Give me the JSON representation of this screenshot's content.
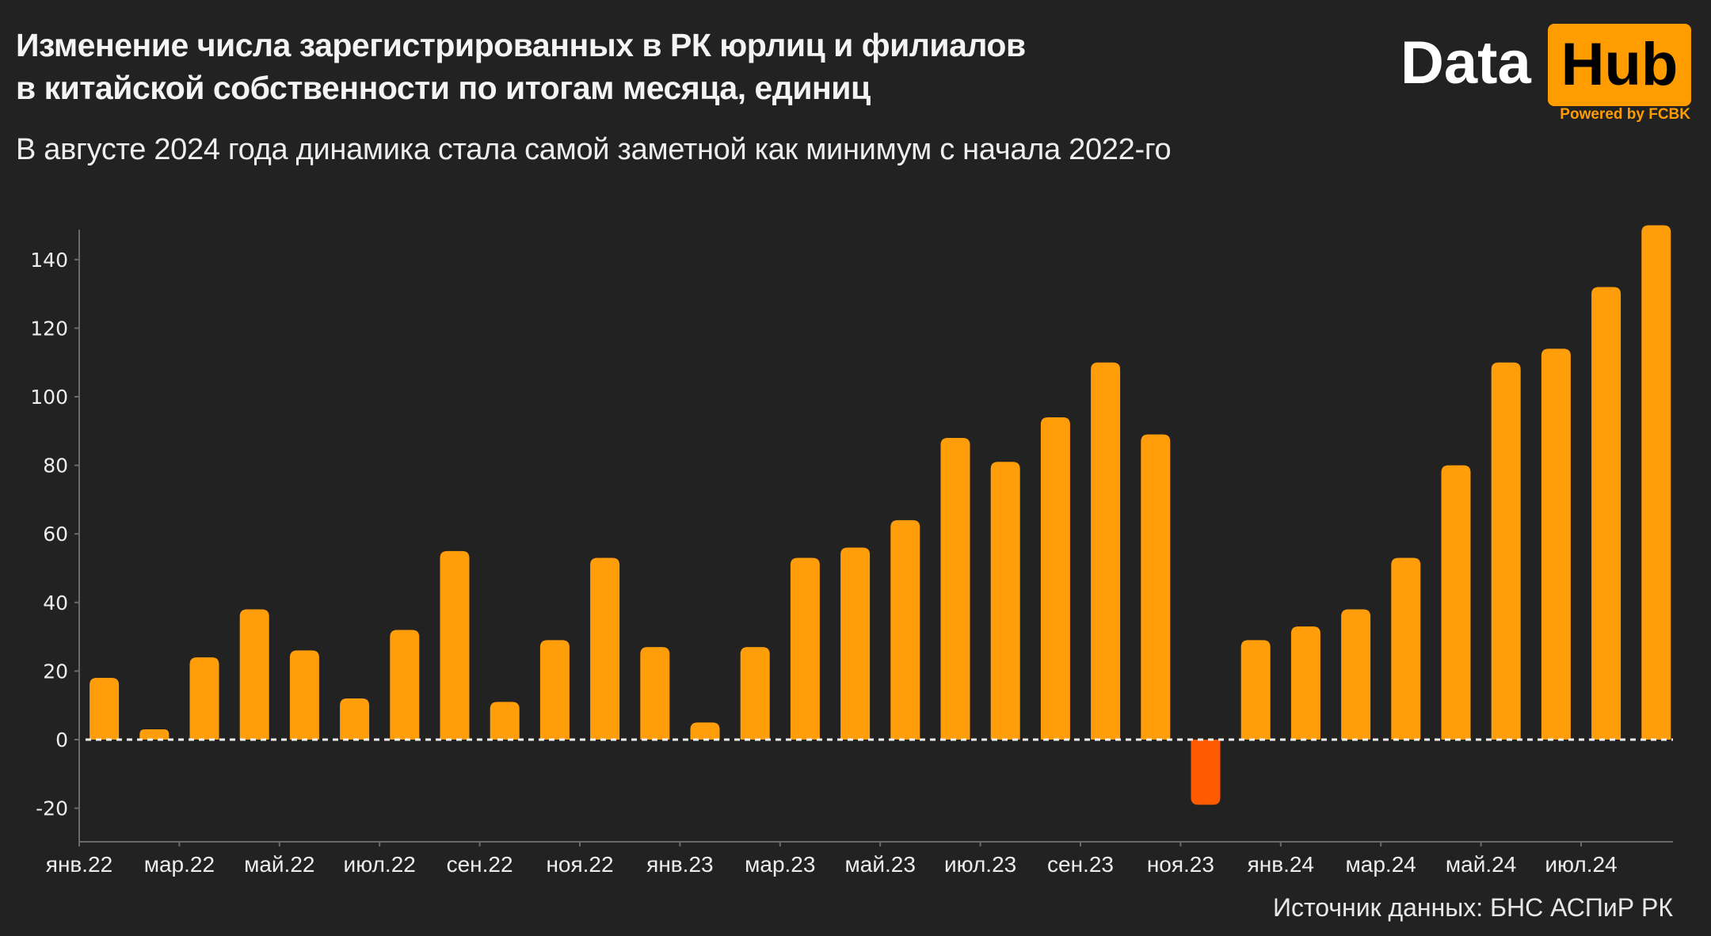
{
  "header": {
    "title_line1": "Изменение числа зарегистрированных в РК юрлиц и филиалов",
    "title_line2": "в китайской собственности по итогам месяца, единиц",
    "subtitle": "В августе 2024 года динамика стала самой заметной как минимум с начала 2022-го"
  },
  "logo": {
    "data": "Data",
    "hub": "Hub",
    "powered": "Powered by FCBK"
  },
  "footer": {
    "source": "Источник данных: БНС АСПиР РК"
  },
  "colors": {
    "background": "#222222",
    "positive": "#ff9d0a",
    "negative": "#ff5a00",
    "brand": "#ff9d00"
  },
  "chart_data": {
    "type": "bar",
    "title": "Изменение числа зарегистрированных в РК юрлиц и филиалов в китайской собственности по итогам месяца, единиц",
    "subtitle": "В августе 2024 года динамика стала самой заметной как минимум с начала 2022-го",
    "xlabel": "",
    "ylabel": "",
    "ylim": [
      -30,
      150
    ],
    "yticks": [
      -20,
      0,
      20,
      40,
      60,
      80,
      100,
      120,
      140
    ],
    "grid": false,
    "zero_line": "dashed",
    "x_tick_labels": [
      "янв.22",
      "мар.22",
      "май.22",
      "июл.22",
      "сен.22",
      "ноя.22",
      "янв.23",
      "мар.23",
      "май.23",
      "июл.23",
      "сен.23",
      "ноя.23",
      "янв.24",
      "мар.24",
      "май.24",
      "июл.24"
    ],
    "categories": [
      "янв.22",
      "фев.22",
      "мар.22",
      "апр.22",
      "май.22",
      "июн.22",
      "июл.22",
      "авг.22",
      "сен.22",
      "окт.22",
      "ноя.22",
      "дек.22",
      "янв.23",
      "фев.23",
      "мар.23",
      "апр.23",
      "май.23",
      "июн.23",
      "июл.23",
      "авг.23",
      "сен.23",
      "окт.23",
      "ноя.23",
      "дек.23",
      "янв.24",
      "фев.24",
      "мар.24",
      "апр.24",
      "май.24",
      "июн.24",
      "июл.24",
      "авг.24"
    ],
    "values": [
      18,
      3,
      24,
      38,
      26,
      12,
      32,
      55,
      11,
      29,
      53,
      27,
      5,
      27,
      53,
      56,
      64,
      88,
      81,
      94,
      110,
      89,
      -19,
      29,
      33,
      38,
      53,
      80,
      110,
      114,
      132,
      150
    ],
    "source": "Источник данных: БНС АСПиР РК"
  }
}
